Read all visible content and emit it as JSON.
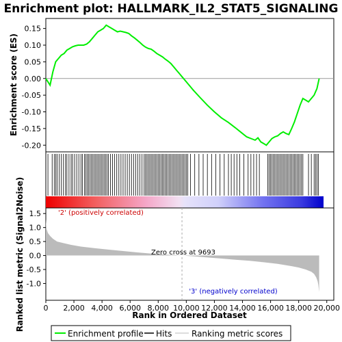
{
  "chart_data": [
    {
      "type": "line",
      "title": "Enrichment plot: HALLMARK_IL2_STAT5_SIGNALING",
      "ylabel": "Enrichment score (ES)",
      "ylim": [
        -0.22,
        0.18
      ],
      "yticks": [
        0.15,
        0.1,
        0.05,
        0.0,
        -0.05,
        -0.1,
        -0.15,
        -0.2
      ],
      "ytick_labels": [
        "0.15",
        "0.10",
        "0.05",
        "0.00",
        "-0.05",
        "-0.10",
        "-0.15",
        "-0.20"
      ],
      "xlim": [
        0,
        19500
      ],
      "series": [
        {
          "name": "Enrichment profile",
          "color": "#00ee00",
          "x": [
            0,
            300,
            500,
            700,
            900,
            1100,
            1300,
            1500,
            1700,
            1900,
            2100,
            2300,
            2500,
            2700,
            2900,
            3100,
            3300,
            3500,
            3700,
            3900,
            4100,
            4300,
            4500,
            4700,
            4900,
            5100,
            5300,
            5500,
            5700,
            5900,
            6100,
            6300,
            6500,
            6700,
            6900,
            7100,
            7300,
            7500,
            7700,
            7900,
            8100,
            8300,
            8500,
            8700,
            8900,
            9100,
            9300,
            9500,
            9700,
            10000,
            10500,
            11000,
            11500,
            12000,
            12500,
            13000,
            13500,
            14000,
            14300,
            14600,
            14900,
            15100,
            15300,
            15500,
            15700,
            15900,
            16100,
            16300,
            16500,
            16700,
            16900,
            17100,
            17300,
            17500,
            17700,
            17900,
            18100,
            18300,
            18500,
            18700,
            18900,
            19100,
            19300,
            19460
          ],
          "y": [
            0.0,
            -0.02,
            0.02,
            0.05,
            0.06,
            0.07,
            0.075,
            0.085,
            0.09,
            0.095,
            0.098,
            0.1,
            0.1,
            0.1,
            0.103,
            0.11,
            0.12,
            0.13,
            0.14,
            0.145,
            0.15,
            0.16,
            0.155,
            0.15,
            0.145,
            0.14,
            0.142,
            0.14,
            0.138,
            0.135,
            0.128,
            0.122,
            0.115,
            0.108,
            0.1,
            0.094,
            0.09,
            0.088,
            0.082,
            0.075,
            0.07,
            0.065,
            0.058,
            0.052,
            0.045,
            0.035,
            0.025,
            0.015,
            0.005,
            -0.01,
            -0.035,
            -0.058,
            -0.08,
            -0.1,
            -0.118,
            -0.132,
            -0.148,
            -0.165,
            -0.175,
            -0.18,
            -0.185,
            -0.178,
            -0.19,
            -0.195,
            -0.2,
            -0.19,
            -0.18,
            -0.175,
            -0.172,
            -0.165,
            -0.16,
            -0.165,
            -0.168,
            -0.15,
            -0.13,
            -0.105,
            -0.08,
            -0.06,
            -0.065,
            -0.07,
            -0.06,
            -0.05,
            -0.03,
            0.0
          ]
        }
      ]
    },
    {
      "type": "scatter",
      "name": "Hits",
      "note_visible": "hit positions rank index",
      "x": [
        150,
        450,
        600,
        700,
        800,
        950,
        1100,
        1250,
        1400,
        1500,
        1650,
        1800,
        1900,
        2050,
        2200,
        2350,
        2500,
        2600,
        2750,
        2850,
        2950,
        3050,
        3150,
        3250,
        3350,
        3450,
        3550,
        3650,
        3750,
        3850,
        3950,
        4050,
        4150,
        4250,
        4350,
        4450,
        4600,
        4750,
        4900,
        5050,
        5200,
        5350,
        5500,
        5650,
        5800,
        5950,
        6100,
        6250,
        6400,
        6550,
        6700,
        6850,
        7000,
        7100,
        7200,
        7300,
        7400,
        7500,
        7600,
        7700,
        7800,
        7900,
        8000,
        8100,
        8200,
        8300,
        8400,
        8500,
        8600,
        8700,
        8800,
        8900,
        9000,
        9100,
        9200,
        9300,
        9400,
        9500,
        9600,
        9700,
        9800,
        9900,
        10000,
        10100,
        10300,
        10600,
        10900,
        11200,
        11500,
        11800,
        12100,
        12400,
        12700,
        13000,
        13200,
        13400,
        13600,
        13800,
        14100,
        14400,
        14600,
        14800,
        15000,
        15200,
        15800,
        15900,
        16000,
        16100,
        16200,
        16300,
        16400,
        16500,
        16600,
        16700,
        16800,
        16900,
        17000,
        17100,
        17200,
        17300,
        17400,
        17500,
        17600,
        17700,
        17800,
        17900,
        18000,
        18100,
        18200,
        18300,
        18700,
        18900,
        19100,
        19200,
        19300,
        19400
      ]
    },
    {
      "type": "area",
      "name": "Ranking metric scores",
      "ylabel": "Ranked list metric (Signal2Noise)",
      "xlabel": "Rank in Ordered Dataset",
      "ylim": [
        -1.6,
        1.7
      ],
      "yticks": [
        1.5,
        1.0,
        0.5,
        0.0,
        -0.5,
        -1.0
      ],
      "ytick_labels": [
        "1.5",
        "1.0",
        "0.5",
        "0.0",
        "-0.5",
        "-1.0"
      ],
      "xlim": [
        0,
        20500
      ],
      "xticks": [
        0,
        2000,
        4000,
        6000,
        8000,
        10000,
        12000,
        14000,
        16000,
        18000,
        20000
      ],
      "xtick_labels": [
        "0",
        "2,000",
        "4,000",
        "6,000",
        "8,000",
        "10,000",
        "12,000",
        "14,000",
        "16,000",
        "18,000",
        "20,000"
      ],
      "x": [
        0,
        50,
        150,
        300,
        500,
        800,
        1200,
        1800,
        2500,
        3500,
        4500,
        5500,
        6500,
        7500,
        8500,
        9693,
        10500,
        11500,
        12500,
        13500,
        14500,
        15500,
        16500,
        17500,
        18000,
        18500,
        18900,
        19100,
        19250,
        19350,
        19400,
        19460
      ],
      "y": [
        1.3,
        0.95,
        0.8,
        0.7,
        0.6,
        0.5,
        0.45,
        0.38,
        0.32,
        0.26,
        0.21,
        0.16,
        0.11,
        0.07,
        0.03,
        0.0,
        -0.03,
        -0.07,
        -0.11,
        -0.15,
        -0.19,
        -0.24,
        -0.3,
        -0.38,
        -0.43,
        -0.5,
        -0.58,
        -0.66,
        -0.78,
        -0.92,
        -1.05,
        -1.3
      ],
      "annotations": [
        {
          "text": "'2' (positively correlated)",
          "color": "#cc0000"
        },
        {
          "text": "Zero cross at 9693",
          "color": "#000000"
        },
        {
          "text": "'3' (negatively correlated)",
          "color": "#0000cc"
        }
      ]
    }
  ],
  "legend": {
    "items": [
      {
        "label": "Enrichment profile",
        "color": "#00ee00"
      },
      {
        "label": "Hits",
        "color": "#000000"
      },
      {
        "label": "Ranking metric scores",
        "color": "#bbbbbb"
      }
    ]
  }
}
